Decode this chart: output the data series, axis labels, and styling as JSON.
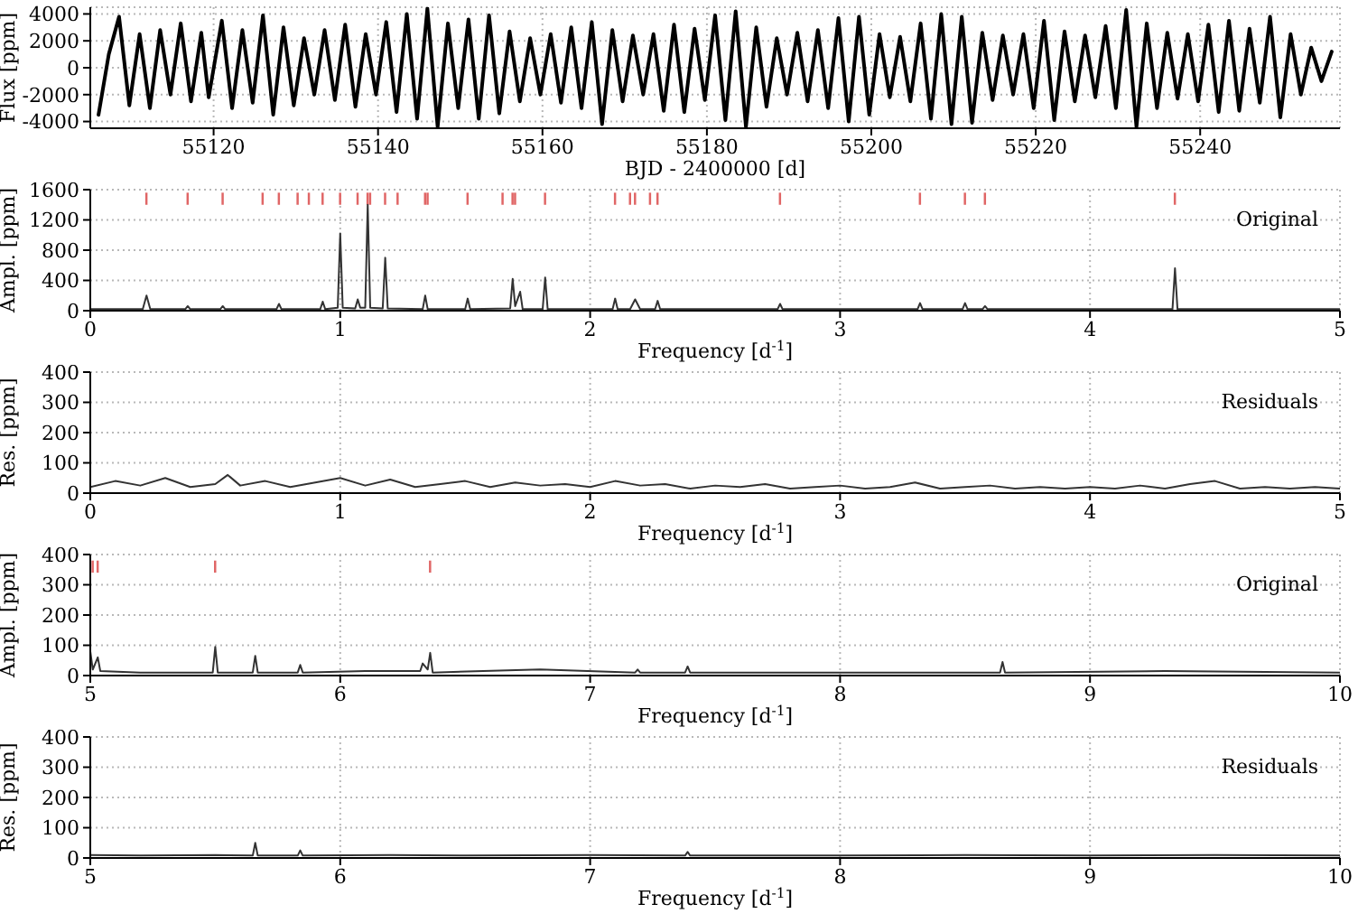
{
  "chart_data": [
    {
      "type": "line",
      "xlabel": "BJD - 2400000 [d]",
      "ylabel": "Flux [ppm]",
      "xlim": [
        55105,
        55257
      ],
      "xticks": [
        55120,
        55140,
        55160,
        55180,
        55200,
        55220,
        55240
      ],
      "ylim": [
        -4500,
        4500
      ],
      "yticks": [
        -4000,
        -2000,
        0,
        2000,
        4000
      ],
      "grid": true,
      "legend": false,
      "series": [
        {
          "color": "#000000",
          "x": [
            55106,
            55107.25,
            55108.5,
            55109.75,
            55111,
            55112.25,
            55113.5,
            55114.75,
            55116,
            55117.25,
            55118.5,
            55119.4,
            55121,
            55122.25,
            55123.5,
            55124.75,
            55126,
            55127.25,
            55128.5,
            55129.75,
            55131,
            55132.25,
            55133.5,
            55134.75,
            55136,
            55137.25,
            55138.5,
            55139.75,
            55141,
            55142.25,
            55143.5,
            55144.75,
            55146,
            55147.25,
            55148.5,
            55149.75,
            55151,
            55152.25,
            55153.5,
            55154.75,
            55156,
            55157.25,
            55158.5,
            55159.75,
            55161,
            55162.25,
            55163.5,
            55164.75,
            55166,
            55167.25,
            55168.5,
            55169.75,
            55171,
            55172.25,
            55173.5,
            55174.75,
            55176,
            55177.25,
            55178.5,
            55179.75,
            55181,
            55182.25,
            55183.5,
            55184.75,
            55186,
            55187.25,
            55188.5,
            55189.75,
            55191,
            55192.25,
            55193.5,
            55194.75,
            55196,
            55197.25,
            55198.5,
            55199.75,
            55201,
            55202.25,
            55203.5,
            55204.75,
            55206,
            55207.25,
            55208.5,
            55209.75,
            55211,
            55212.25,
            55213.5,
            55214.75,
            55216,
            55217.25,
            55218.5,
            55219.75,
            55221,
            55222.25,
            55223.5,
            55224.75,
            55226,
            55227.25,
            55228.5,
            55229.75,
            55231,
            55232.25,
            55233.5,
            55234.75,
            55236,
            55237.25,
            55238.5,
            55239.75,
            55241,
            55242.25,
            55243.5,
            55244.75,
            55246,
            55247.25,
            55248.5,
            55249.75,
            55251,
            55252.25,
            55253.5,
            55254.75,
            55256
          ],
          "values": [
            -3500,
            1000,
            3800,
            -2800,
            2500,
            -3000,
            2800,
            -2000,
            3300,
            -2500,
            2600,
            -2200,
            3500,
            -3000,
            2800,
            -2600,
            3900,
            -3500,
            3000,
            -2800,
            2200,
            -2000,
            2800,
            -2400,
            3200,
            -2900,
            2500,
            -2000,
            3400,
            -3300,
            4000,
            -3800,
            4400,
            -4400,
            3300,
            -3000,
            3600,
            -3800,
            3900,
            -3400,
            2700,
            -2500,
            2200,
            -2000,
            2500,
            -2600,
            3000,
            -3000,
            3400,
            -4200,
            2800,
            -2500,
            2400,
            -2000,
            2500,
            -3200,
            3200,
            -3300,
            2900,
            -2400,
            3900,
            -3900,
            4200,
            -4400,
            3000,
            -2900,
            2200,
            -2000,
            2600,
            -2500,
            2800,
            -3000,
            3700,
            -4000,
            3800,
            -3500,
            2500,
            -2200,
            2300,
            -2500,
            3300,
            -3800,
            4000,
            -4200,
            3800,
            -4100,
            2600,
            -2400,
            2400,
            -2000,
            2500,
            -3000,
            3500,
            -3900,
            2700,
            -2500,
            2400,
            -2200,
            3100,
            -3000,
            4300,
            -4400,
            3300,
            -3000,
            2600,
            -2300,
            2500,
            -2500,
            3200,
            -3300,
            3500,
            -3200,
            2900,
            -2600,
            3800,
            -3700,
            2500,
            -2000,
            1500,
            -1000,
            1200
          ]
        }
      ]
    },
    {
      "type": "line",
      "xlabel": "Frequency [d$^{-1}$]",
      "ylabel": "Ampl. [ppm]",
      "xlim": [
        0,
        5
      ],
      "xticks": [
        0,
        1,
        2,
        3,
        4,
        5
      ],
      "ylim": [
        0,
        1600
      ],
      "yticks": [
        0,
        400,
        800,
        1200,
        1600
      ],
      "grid": true,
      "legend": false,
      "annotations": [
        "Original"
      ],
      "series": [
        {
          "color": "#333333",
          "x": [
            0,
            0.21,
            0.225,
            0.24,
            0.38,
            0.39,
            0.4,
            0.52,
            0.53,
            0.54,
            0.745,
            0.755,
            0.765,
            0.92,
            0.93,
            0.94,
            0.99,
            1.0,
            1.01,
            1.06,
            1.07,
            1.08,
            1.1,
            1.11,
            1.12,
            1.17,
            1.18,
            1.19,
            1.33,
            1.34,
            1.35,
            1.5,
            1.51,
            1.52,
            1.68,
            1.69,
            1.7,
            1.72,
            1.73,
            1.81,
            1.82,
            1.83,
            2.09,
            2.1,
            2.11,
            2.16,
            2.18,
            2.2,
            2.26,
            2.27,
            2.28,
            2.75,
            2.76,
            2.77,
            3.31,
            3.32,
            3.33,
            3.49,
            3.5,
            3.51,
            3.57,
            3.58,
            3.59,
            4.33,
            4.34,
            4.35,
            5
          ],
          "values": [
            20,
            20,
            200,
            20,
            20,
            60,
            20,
            20,
            60,
            20,
            20,
            90,
            20,
            20,
            120,
            20,
            40,
            1020,
            40,
            30,
            150,
            40,
            40,
            1400,
            40,
            30,
            700,
            30,
            20,
            200,
            20,
            20,
            160,
            20,
            30,
            420,
            60,
            250,
            20,
            20,
            440,
            20,
            20,
            160,
            20,
            20,
            150,
            20,
            20,
            130,
            20,
            20,
            90,
            20,
            20,
            100,
            20,
            20,
            100,
            20,
            20,
            60,
            20,
            20,
            560,
            20,
            20
          ]
        },
        {
          "type": "bar",
          "color": "#e06666",
          "base": [
            1400,
            1400,
            1400,
            1400,
            1400,
            1400,
            1400,
            1400,
            1400,
            1400,
            1400,
            1400,
            1400,
            1400,
            1400,
            1400,
            1400,
            1400,
            1400,
            1400,
            1400,
            1400,
            1400,
            1400,
            1400,
            1400,
            1400,
            1400,
            1400,
            1400,
            1400
          ],
          "x": [
            0.225,
            0.39,
            0.53,
            0.69,
            0.755,
            0.83,
            0.875,
            0.93,
            1.0,
            1.07,
            1.11,
            1.12,
            1.18,
            1.23,
            1.34,
            1.35,
            1.51,
            1.65,
            1.69,
            1.7,
            1.82,
            2.1,
            2.16,
            2.18,
            2.24,
            2.27,
            2.76,
            3.32,
            3.5,
            3.58,
            4.34
          ],
          "values": [
            160,
            160,
            160,
            160,
            160,
            160,
            160,
            160,
            160,
            160,
            160,
            160,
            160,
            160,
            160,
            160,
            160,
            160,
            160,
            160,
            160,
            160,
            160,
            160,
            160,
            160,
            160,
            160,
            160,
            160,
            160
          ]
        }
      ]
    },
    {
      "type": "line",
      "xlabel": "Frequency [d$^{-1}$]",
      "ylabel": "Res. [ppm]",
      "xlim": [
        0,
        5
      ],
      "xticks": [
        0,
        1,
        2,
        3,
        4,
        5
      ],
      "ylim": [
        0,
        400
      ],
      "yticks": [
        0,
        100,
        200,
        300,
        400
      ],
      "grid": true,
      "legend": false,
      "annotations": [
        "Residuals"
      ],
      "series": [
        {
          "color": "#333333",
          "x": [
            0,
            0.1,
            0.2,
            0.3,
            0.4,
            0.5,
            0.55,
            0.6,
            0.7,
            0.8,
            0.9,
            1.0,
            1.1,
            1.2,
            1.3,
            1.4,
            1.5,
            1.6,
            1.7,
            1.8,
            1.9,
            2.0,
            2.1,
            2.2,
            2.3,
            2.4,
            2.5,
            2.6,
            2.7,
            2.8,
            2.9,
            3.0,
            3.1,
            3.2,
            3.3,
            3.4,
            3.5,
            3.6,
            3.7,
            3.8,
            3.9,
            4.0,
            4.1,
            4.2,
            4.3,
            4.4,
            4.5,
            4.6,
            4.7,
            4.8,
            4.9,
            5
          ],
          "values": [
            20,
            40,
            25,
            50,
            20,
            30,
            60,
            25,
            40,
            20,
            35,
            50,
            25,
            45,
            20,
            30,
            40,
            20,
            35,
            25,
            30,
            20,
            40,
            25,
            30,
            15,
            25,
            20,
            30,
            15,
            20,
            25,
            15,
            20,
            35,
            15,
            20,
            25,
            15,
            20,
            15,
            20,
            15,
            25,
            15,
            30,
            40,
            15,
            20,
            15,
            20,
            15
          ]
        }
      ]
    },
    {
      "type": "line",
      "xlabel": "Frequency [d$^{-1}$]",
      "ylabel": "Ampl. [ppm]",
      "xlim": [
        5,
        10
      ],
      "xticks": [
        5,
        6,
        7,
        8,
        9,
        10
      ],
      "ylim": [
        0,
        400
      ],
      "yticks": [
        0,
        100,
        200,
        300,
        400
      ],
      "grid": true,
      "legend": false,
      "annotations": [
        "Original"
      ],
      "series": [
        {
          "color": "#333333",
          "x": [
            5,
            5.01,
            5.02,
            5.03,
            5.04,
            5.2,
            5.49,
            5.5,
            5.51,
            5.65,
            5.66,
            5.67,
            5.83,
            5.84,
            5.85,
            6.1,
            6.32,
            6.33,
            6.35,
            6.36,
            6.37,
            6.8,
            7.18,
            7.19,
            7.2,
            7.38,
            7.39,
            7.4,
            8.0,
            8.64,
            8.65,
            8.66,
            9.3,
            10
          ],
          "values": [
            80,
            20,
            40,
            60,
            15,
            10,
            10,
            95,
            10,
            10,
            65,
            10,
            10,
            35,
            10,
            15,
            15,
            40,
            20,
            75,
            10,
            20,
            10,
            20,
            10,
            10,
            30,
            10,
            10,
            10,
            45,
            10,
            15,
            10
          ]
        },
        {
          "type": "bar",
          "color": "#e06666",
          "base": [
            340,
            340,
            340,
            340
          ],
          "x": [
            5.01,
            5.03,
            5.5,
            6.36
          ],
          "values": [
            40,
            40,
            40,
            40
          ]
        }
      ]
    },
    {
      "type": "line",
      "xlabel": "Frequency [d$^{-1}$]",
      "ylabel": "Res. [ppm]",
      "xlim": [
        5,
        10
      ],
      "xticks": [
        5,
        6,
        7,
        8,
        9,
        10
      ],
      "ylim": [
        0,
        400
      ],
      "yticks": [
        0,
        100,
        200,
        300,
        400
      ],
      "grid": true,
      "legend": false,
      "annotations": [
        "Residuals"
      ],
      "series": [
        {
          "color": "#333333",
          "x": [
            5,
            5.2,
            5.5,
            5.65,
            5.66,
            5.67,
            5.83,
            5.84,
            5.85,
            6.2,
            6.5,
            7.0,
            7.38,
            7.39,
            7.4,
            8.0,
            8.5,
            9.0,
            9.5,
            10
          ],
          "values": [
            10,
            8,
            10,
            8,
            50,
            8,
            8,
            25,
            8,
            10,
            8,
            10,
            8,
            20,
            8,
            8,
            10,
            8,
            10,
            8
          ]
        }
      ]
    }
  ]
}
